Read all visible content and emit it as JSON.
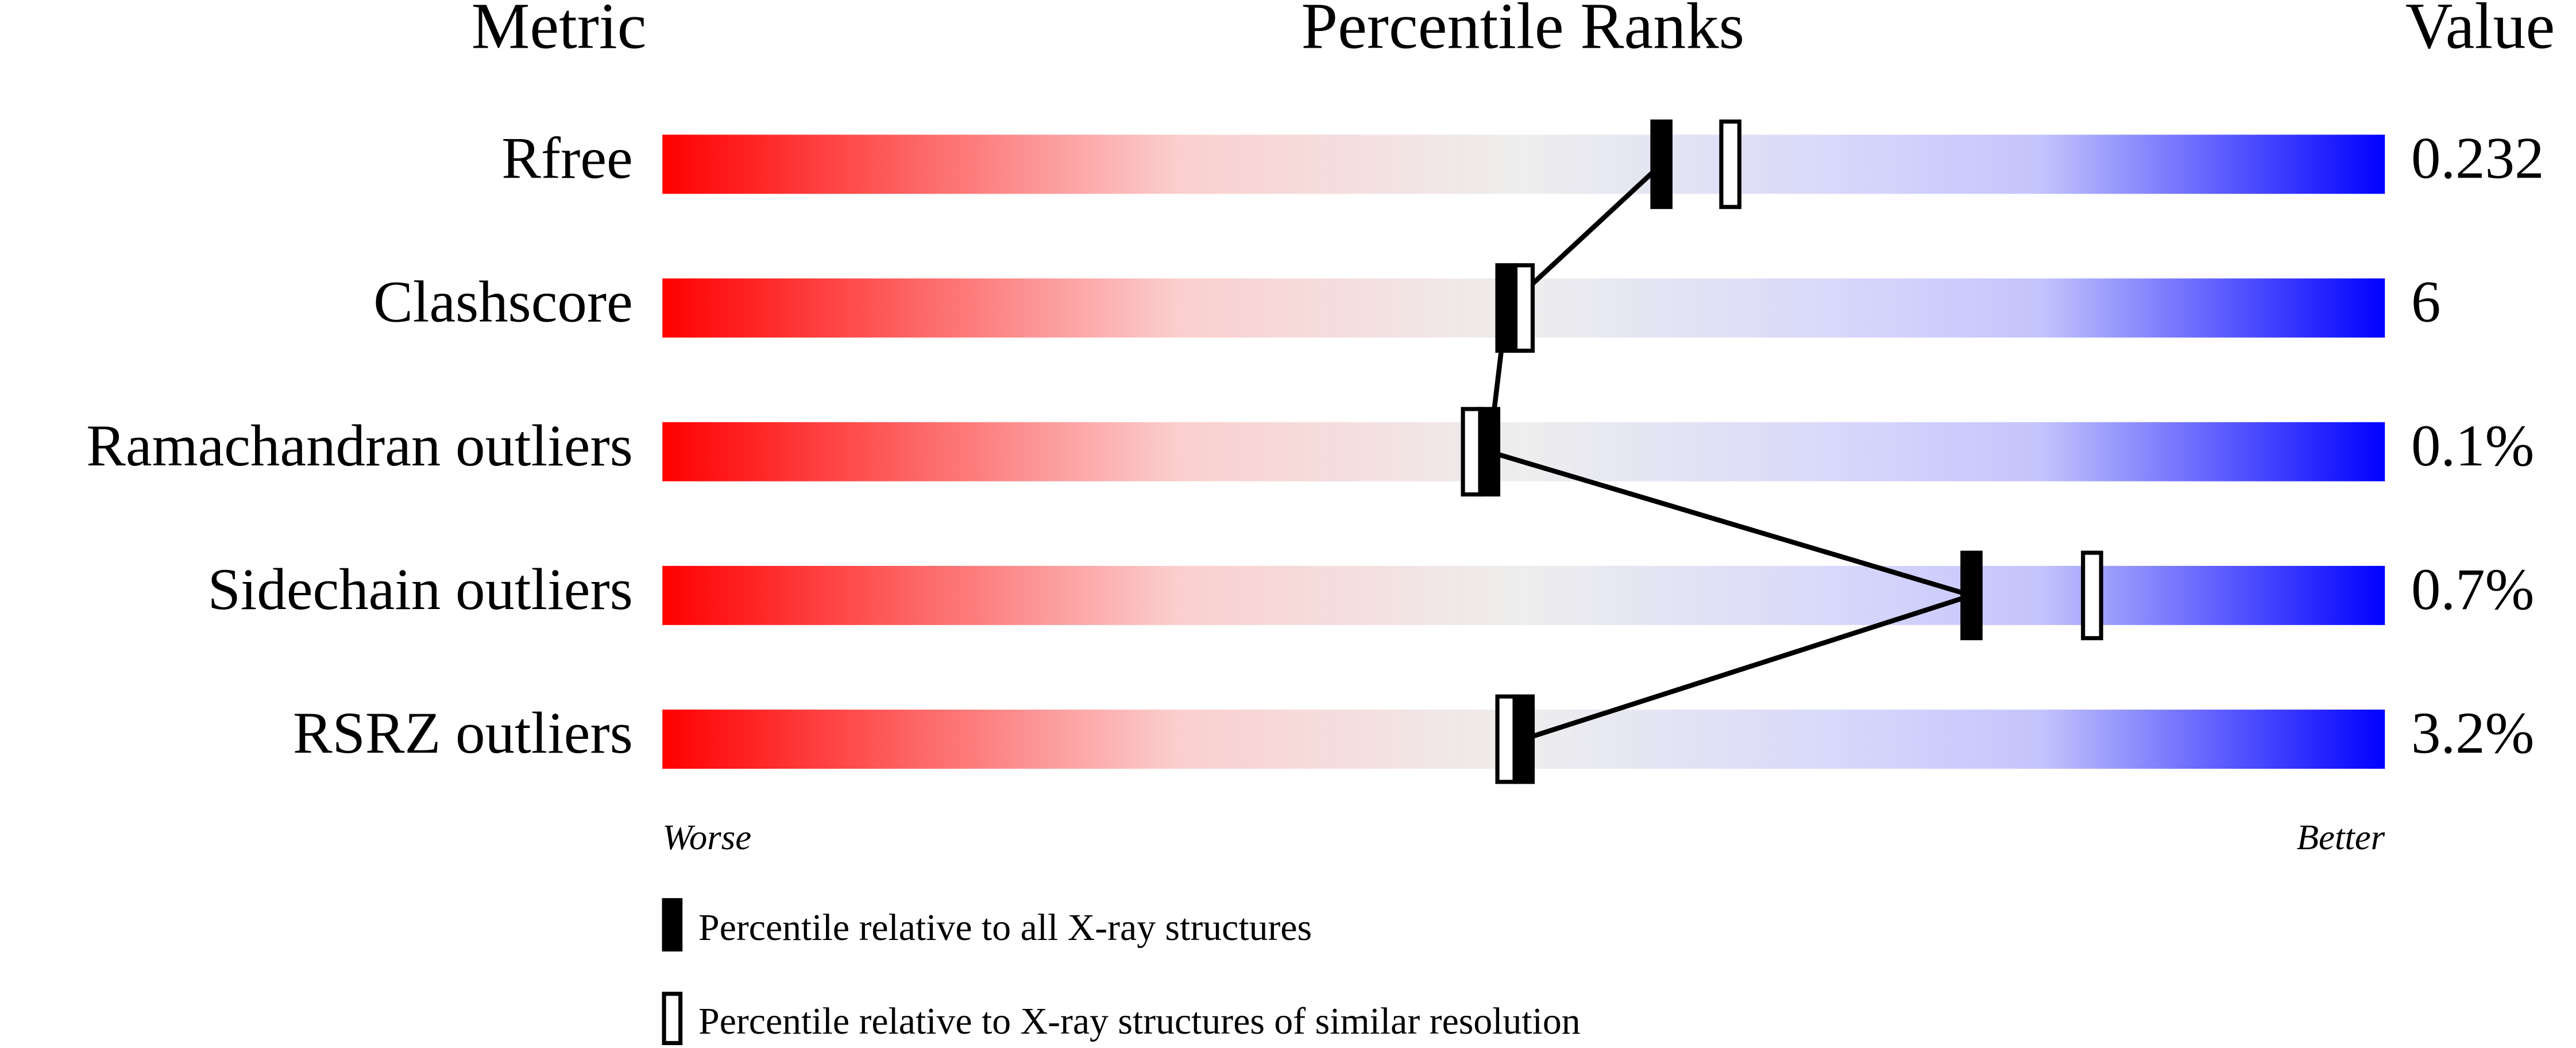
{
  "chart_data": {
    "type": "percentile_ranks",
    "headers": {
      "metric": "Metric",
      "ranks": "Percentile Ranks",
      "value": "Value"
    },
    "categories": [
      "Rfree",
      "Clashscore",
      "Ramachandran outliers",
      "Sidechain outliers",
      "RSRZ outliers"
    ],
    "metric_values": [
      "0.232",
      "6",
      "0.1%",
      "0.7%",
      "3.2%"
    ],
    "xlim": [
      0,
      100
    ],
    "axis_labels": {
      "low": "Worse",
      "high": "Better"
    },
    "series": [
      {
        "name": "Percentile relative to all X-ray structures",
        "color": "#000000",
        "marker": "filled",
        "values": [
          58,
          49,
          48,
          76,
          50
        ]
      },
      {
        "name": "Percentile relative to X-ray structures of similar resolution",
        "color": "#000000",
        "marker": "open",
        "values": [
          62,
          50,
          47,
          83,
          49
        ]
      }
    ]
  }
}
